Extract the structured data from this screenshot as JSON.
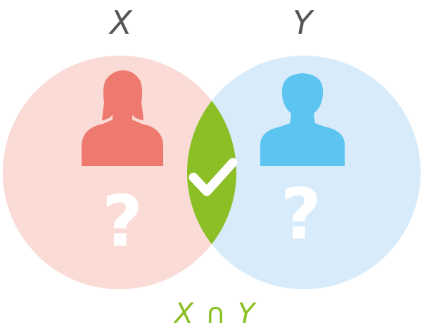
{
  "sets": {
    "x": {
      "label": "X",
      "color": "#fadbd5",
      "person_icon": "woman-silhouette-icon",
      "person_color": "#ee7a6f"
    },
    "y": {
      "label": "Y",
      "color": "#d7ebfa",
      "person_icon": "man-silhouette-icon",
      "person_color": "#5cc4f1"
    }
  },
  "unknown_mark": "?",
  "intersection": {
    "label": "X ∩ Y",
    "color": "#8cbf26",
    "icon": "checkmark-icon"
  },
  "label_color": "#555555"
}
